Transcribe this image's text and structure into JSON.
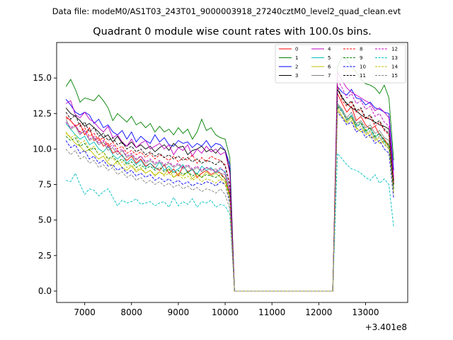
{
  "figure": {
    "suptitle": "Data file: modeM0/AS1T03_243T01_9000003918_27240cztM0_level2_quad_clean.evt"
  },
  "chart_data": {
    "type": "line",
    "title": "Quadrant 0 module wise count rates with 100.0s bins.",
    "xlabel": "",
    "ylabel": "",
    "x_offset_label": "+3.401e8",
    "xlim": [
      6400,
      13900
    ],
    "ylim": [
      -0.8,
      17.5
    ],
    "x_ticks": [
      7000,
      8000,
      9000,
      10000,
      11000,
      12000,
      13000
    ],
    "x_tick_labels": [
      "7000",
      "8000",
      "9000",
      "10000",
      "11000",
      "12000",
      "13000"
    ],
    "y_ticks": [
      0,
      2.5,
      5,
      7.5,
      10,
      12.5,
      15
    ],
    "y_tick_labels": [
      "0.0",
      "2.5",
      "5.0",
      "7.5",
      "10.0",
      "12.5",
      "15.0"
    ],
    "grid": false,
    "legend_position": "top-right",
    "legend_columns": 4,
    "x_segment1": {
      "start": 6600,
      "step": 100,
      "count": 36
    },
    "gap": {
      "start": 10200,
      "end": 12300,
      "value": 0
    },
    "x_segment2": {
      "start": 12400,
      "step": 100,
      "count": 13
    },
    "series": [
      {
        "name": "0",
        "color": "#ff0000",
        "dash": "solid",
        "seg1": [
          12.3,
          12.0,
          11.6,
          11.8,
          11.0,
          11.5,
          10.6,
          10.8,
          10.2,
          10.4,
          9.7,
          9.9,
          9.5,
          9.2,
          9.5,
          9.0,
          9.3,
          8.8,
          9.0,
          8.7,
          8.5,
          8.9,
          8.3,
          8.6,
          8.1,
          8.8,
          8.4,
          8.6,
          8.0,
          8.3,
          8.5,
          8.2,
          8.4,
          8.3,
          7.9,
          6.8
        ],
        "seg2": [
          13.9,
          13.2,
          12.6,
          13.0,
          12.0,
          12.3,
          11.7,
          11.4,
          11.6,
          11.0,
          10.7,
          10.2,
          7.6
        ]
      },
      {
        "name": "1",
        "color": "#008000",
        "dash": "solid",
        "seg1": [
          14.4,
          14.9,
          14.2,
          13.3,
          13.6,
          13.5,
          13.4,
          13.8,
          13.4,
          12.9,
          12.0,
          12.5,
          12.2,
          11.9,
          12.3,
          11.7,
          11.9,
          11.5,
          11.8,
          11.2,
          11.6,
          11.2,
          11.4,
          11.0,
          11.5,
          11.1,
          11.4,
          10.7,
          11.2,
          12.1,
          11.3,
          11.5,
          11.0,
          10.8,
          10.7,
          9.4
        ],
        "seg2": [
          15.8,
          16.5,
          16.3,
          15.8,
          15.4,
          14.9,
          14.6,
          14.5,
          14.3,
          13.9,
          14.5,
          13.6,
          9.2
        ]
      },
      {
        "name": "2",
        "color": "#0000ff",
        "dash": "solid",
        "seg1": [
          13.5,
          13.1,
          12.6,
          12.4,
          12.6,
          12.4,
          11.8,
          12.1,
          11.5,
          11.7,
          11.2,
          11.0,
          11.3,
          10.7,
          11.2,
          10.5,
          10.9,
          10.6,
          10.4,
          11.0,
          10.5,
          10.8,
          10.3,
          10.2,
          10.6,
          10.4,
          10.5,
          10.1,
          10.4,
          10.2,
          10.6,
          10.1,
          10.4,
          10.3,
          9.9,
          8.9
        ],
        "seg2": [
          14.4,
          14.0,
          13.8,
          14.2,
          13.6,
          13.5,
          13.1,
          13.3,
          12.9,
          12.8,
          12.6,
          12.5,
          8.5
        ]
      },
      {
        "name": "3",
        "color": "#000000",
        "dash": "solid",
        "seg1": [
          12.9,
          12.5,
          12.3,
          12.0,
          11.6,
          11.8,
          11.5,
          11.2,
          10.8,
          11.0,
          10.5,
          10.9,
          10.4,
          10.2,
          10.5,
          10.1,
          10.3,
          10.0,
          10.2,
          9.8,
          10.1,
          10.3,
          9.9,
          10.4,
          10.1,
          10.2,
          9.6,
          9.9,
          10.0,
          10.2,
          9.8,
          10.0,
          9.7,
          10.1,
          9.9,
          8.5
        ],
        "seg2": [
          14.2,
          13.6,
          13.2,
          12.9,
          12.7,
          12.4,
          12.2,
          12.1,
          11.9,
          11.7,
          11.6,
          11.4,
          7.8
        ]
      },
      {
        "name": "4",
        "color": "#bf00bf",
        "dash": "solid",
        "seg1": [
          13.2,
          13.4,
          12.4,
          12.2,
          12.6,
          12.1,
          11.9,
          11.5,
          11.2,
          11.6,
          10.8,
          11.0,
          10.5,
          10.2,
          10.7,
          10.1,
          10.4,
          10.6,
          10.0,
          10.2,
          10.4,
          10.0,
          10.3,
          9.6,
          10.1,
          9.9,
          10.3,
          9.5,
          10.0,
          9.7,
          10.2,
          9.8,
          10.0,
          9.6,
          9.8,
          8.3
        ],
        "seg2": [
          15.4,
          14.8,
          14.3,
          14.0,
          13.8,
          13.6,
          13.4,
          13.2,
          12.7,
          12.9,
          12.6,
          12.2,
          8.0
        ]
      },
      {
        "name": "5",
        "color": "#00bfbf",
        "dash": "solid",
        "seg1": [
          11.8,
          11.4,
          11.0,
          10.7,
          10.9,
          10.3,
          10.5,
          10.0,
          9.8,
          10.2,
          9.6,
          9.3,
          9.6,
          9.0,
          9.3,
          8.9,
          9.2,
          8.7,
          9.0,
          8.6,
          9.1,
          8.5,
          8.8,
          8.4,
          8.6,
          8.9,
          8.3,
          8.6,
          8.2,
          8.8,
          8.5,
          8.7,
          8.3,
          8.6,
          8.4,
          7.0
        ],
        "seg2": [
          13.1,
          12.7,
          12.0,
          12.4,
          11.6,
          11.8,
          11.2,
          11.5,
          10.8,
          11.1,
          10.5,
          10.2,
          7.2
        ]
      },
      {
        "name": "6",
        "color": "#bfbf00",
        "dash": "solid",
        "seg1": [
          11.1,
          10.8,
          10.4,
          10.2,
          9.8,
          10.0,
          9.6,
          9.3,
          9.5,
          9.0,
          8.8,
          9.2,
          8.7,
          8.5,
          8.8,
          8.4,
          8.6,
          8.3,
          8.5,
          8.1,
          8.4,
          8.2,
          8.6,
          8.0,
          8.3,
          8.1,
          8.4,
          7.9,
          8.2,
          8.0,
          8.4,
          8.1,
          8.3,
          8.0,
          7.7,
          6.6
        ],
        "seg2": [
          12.9,
          12.3,
          11.9,
          12.2,
          11.5,
          11.2,
          11.4,
          10.8,
          10.9,
          10.4,
          10.6,
          10.1,
          7.0
        ]
      },
      {
        "name": "7",
        "color": "#808080",
        "dash": "solid",
        "seg1": [
          12.1,
          11.4,
          11.6,
          11.0,
          11.3,
          10.6,
          10.8,
          10.3,
          10.5,
          9.9,
          10.1,
          9.6,
          9.9,
          9.4,
          9.6,
          9.2,
          9.5,
          9.0,
          9.2,
          8.9,
          9.1,
          8.8,
          9.0,
          8.7,
          8.9,
          8.6,
          8.8,
          8.5,
          8.7,
          8.4,
          8.7,
          8.5,
          8.6,
          8.3,
          8.2,
          7.0
        ],
        "seg2": [
          13.2,
          12.8,
          12.2,
          12.6,
          11.8,
          12.0,
          11.5,
          11.7,
          11.1,
          11.3,
          10.8,
          10.6,
          7.3
        ]
      },
      {
        "name": "8",
        "color": "#ff0000",
        "dash": "dashed",
        "seg1": [
          12.2,
          12.0,
          11.6,
          11.2,
          11.5,
          10.9,
          11.1,
          10.6,
          10.8,
          10.2,
          10.5,
          10.0,
          10.2,
          9.7,
          9.9,
          9.6,
          9.8,
          9.4,
          9.7,
          9.3,
          9.6,
          9.4,
          9.2,
          9.5,
          9.1,
          9.4,
          9.2,
          9.6,
          9.0,
          9.4,
          9.1,
          9.5,
          9.3,
          9.2,
          8.9,
          7.5
        ],
        "seg2": [
          14.5,
          13.4,
          13.0,
          13.3,
          12.6,
          12.8,
          12.1,
          12.3,
          11.6,
          11.9,
          11.3,
          11.0,
          7.6
        ]
      },
      {
        "name": "9",
        "color": "#008000",
        "dash": "dashed",
        "seg1": [
          10.9,
          10.6,
          10.8,
          10.2,
          10.4,
          9.9,
          10.1,
          9.6,
          9.8,
          9.3,
          9.5,
          9.1,
          9.3,
          8.9,
          9.1,
          8.7,
          8.9,
          8.6,
          8.8,
          8.5,
          8.7,
          8.4,
          8.6,
          8.3,
          8.5,
          8.2,
          8.4,
          8.1,
          8.3,
          8.0,
          8.2,
          8.1,
          8.0,
          8.2,
          7.9,
          6.7
        ],
        "seg2": [
          13.0,
          12.6,
          12.1,
          12.3,
          11.7,
          11.9,
          11.3,
          11.5,
          10.9,
          11.1,
          10.6,
          10.3,
          7.2
        ]
      },
      {
        "name": "10",
        "color": "#0000ff",
        "dash": "dashed",
        "seg1": [
          10.6,
          10.1,
          10.3,
          9.7,
          9.9,
          9.3,
          9.5,
          9.0,
          9.2,
          8.8,
          8.9,
          8.5,
          8.7,
          8.3,
          8.5,
          8.1,
          8.3,
          8.0,
          8.2,
          7.8,
          8.0,
          7.7,
          7.9,
          7.6,
          7.8,
          7.5,
          7.7,
          7.4,
          7.6,
          7.5,
          7.7,
          7.6,
          7.4,
          7.7,
          7.5,
          6.2
        ],
        "seg2": [
          12.6,
          12.2,
          11.7,
          11.9,
          11.2,
          11.4,
          10.8,
          11.0,
          10.4,
          10.6,
          10.0,
          9.7,
          6.5
        ]
      },
      {
        "name": "11",
        "color": "#000000",
        "dash": "dashed",
        "seg1": [
          12.6,
          12.1,
          12.4,
          11.6,
          11.9,
          11.2,
          11.5,
          10.9,
          11.1,
          10.6,
          10.8,
          10.3,
          10.5,
          10.0,
          10.2,
          9.8,
          10.0,
          9.6,
          9.8,
          9.5,
          9.7,
          9.4,
          9.6,
          9.3,
          9.5,
          9.2,
          9.4,
          9.1,
          9.3,
          9.0,
          9.2,
          9.1,
          8.9,
          9.2,
          8.8,
          7.4
        ],
        "seg2": [
          14.2,
          13.7,
          13.1,
          13.4,
          12.7,
          12.9,
          12.2,
          12.4,
          11.8,
          12.0,
          11.4,
          11.1,
          7.5
        ]
      },
      {
        "name": "12",
        "color": "#bf00bf",
        "dash": "dashed",
        "seg1": [
          11.9,
          11.5,
          11.7,
          11.1,
          11.3,
          10.7,
          10.9,
          10.4,
          10.6,
          10.1,
          10.3,
          9.8,
          10.0,
          9.5,
          9.7,
          9.3,
          9.5,
          9.1,
          9.3,
          9.0,
          9.2,
          8.9,
          9.1,
          8.8,
          9.0,
          8.7,
          8.9,
          8.6,
          8.8,
          8.5,
          8.7,
          8.6,
          8.4,
          8.7,
          8.3,
          7.1
        ],
        "seg2": [
          14.9,
          14.3,
          13.6,
          13.9,
          13.2,
          13.4,
          12.8,
          13.0,
          12.3,
          12.5,
          11.9,
          11.6,
          7.9
        ]
      },
      {
        "name": "13",
        "color": "#00bfbf",
        "dash": "dashed",
        "seg1": [
          7.8,
          7.7,
          8.3,
          7.5,
          6.8,
          7.2,
          7.1,
          6.7,
          7.0,
          7.2,
          6.6,
          6.0,
          6.4,
          6.2,
          6.3,
          6.5,
          6.1,
          6.2,
          6.3,
          6.0,
          6.2,
          6.3,
          5.9,
          6.6,
          6.0,
          6.3,
          6.1,
          6.5,
          5.9,
          6.3,
          6.2,
          6.4,
          5.9,
          6.1,
          6.0,
          5.4
        ],
        "seg2": [
          9.7,
          9.3,
          8.9,
          8.6,
          8.5,
          8.3,
          8.0,
          7.8,
          8.2,
          7.6,
          7.9,
          7.5,
          4.5
        ]
      },
      {
        "name": "14",
        "color": "#bfbf00",
        "dash": "dashed",
        "seg1": [
          11.2,
          10.8,
          11.0,
          10.4,
          10.6,
          10.0,
          10.2,
          9.6,
          9.8,
          9.2,
          9.4,
          8.9,
          9.1,
          8.7,
          8.9,
          8.5,
          8.7,
          8.3,
          8.5,
          8.2,
          8.4,
          8.1,
          8.3,
          8.0,
          8.2,
          7.9,
          8.1,
          7.8,
          8.0,
          7.7,
          7.9,
          7.8,
          7.6,
          7.9,
          7.5,
          6.4
        ],
        "seg2": [
          12.7,
          12.3,
          11.8,
          12.0,
          11.4,
          11.6,
          11.0,
          11.2,
          10.6,
          10.8,
          10.3,
          10.0,
          6.9
        ]
      },
      {
        "name": "15",
        "color": "#808080",
        "dash": "dashed",
        "seg1": [
          10.0,
          9.6,
          9.9,
          9.3,
          9.5,
          9.0,
          9.2,
          8.7,
          8.9,
          8.5,
          8.7,
          8.2,
          8.4,
          8.0,
          8.2,
          7.8,
          8.0,
          7.6,
          7.8,
          7.5,
          7.7,
          7.4,
          7.6,
          7.3,
          7.5,
          7.2,
          7.4,
          7.1,
          7.3,
          7.0,
          7.2,
          7.1,
          6.9,
          7.2,
          6.8,
          5.8
        ],
        "seg2": [
          13.1,
          12.6,
          12.0,
          12.3,
          11.5,
          11.8,
          11.1,
          11.3,
          10.7,
          10.9,
          10.4,
          10.0,
          6.7
        ]
      }
    ]
  }
}
